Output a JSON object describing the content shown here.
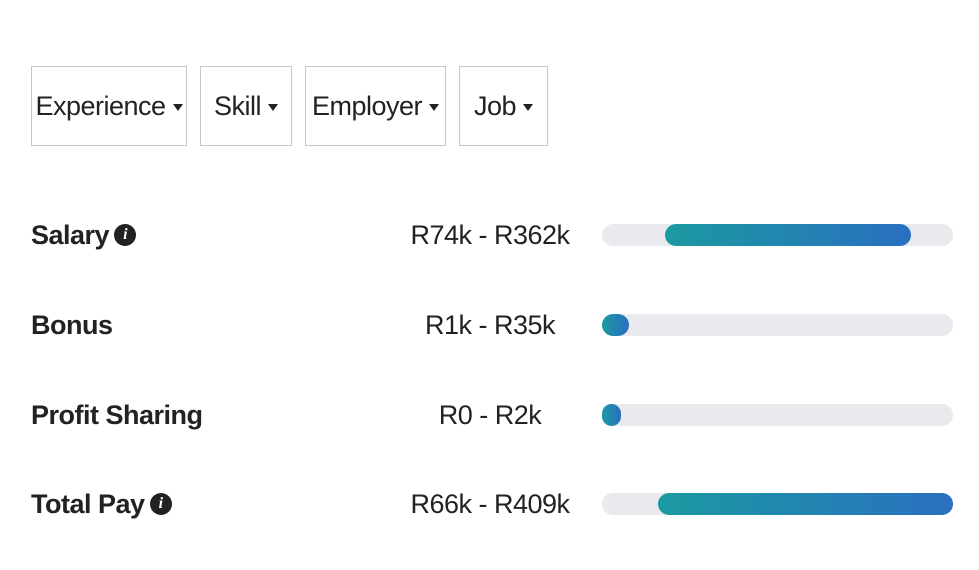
{
  "filters": [
    {
      "label": "Experience"
    },
    {
      "label": "Skill"
    },
    {
      "label": "Employer"
    },
    {
      "label": "Job"
    }
  ],
  "pay_rows": [
    {
      "label": "Salary",
      "has_info": true,
      "range": "R74k - R362k",
      "bar_start": 0.18,
      "bar_end": 0.88
    },
    {
      "label": "Bonus",
      "has_info": false,
      "range": "R1k - R35k",
      "bar_start": 0.0,
      "bar_end": 0.077
    },
    {
      "label": "Profit Sharing",
      "has_info": false,
      "range": "R0 - R2k",
      "bar_start": 0.0,
      "bar_end": 0.051
    },
    {
      "label": "Total Pay",
      "has_info": true,
      "range": "R66k - R409k",
      "bar_start": 0.16,
      "bar_end": 1.0
    }
  ],
  "colors": {
    "bar_start": "#1b9aa1",
    "bar_end": "#2a6fc0",
    "track": "#e9eaee"
  },
  "icons": {
    "filter_caret": "caret-down-icon",
    "info": "info-icon"
  }
}
